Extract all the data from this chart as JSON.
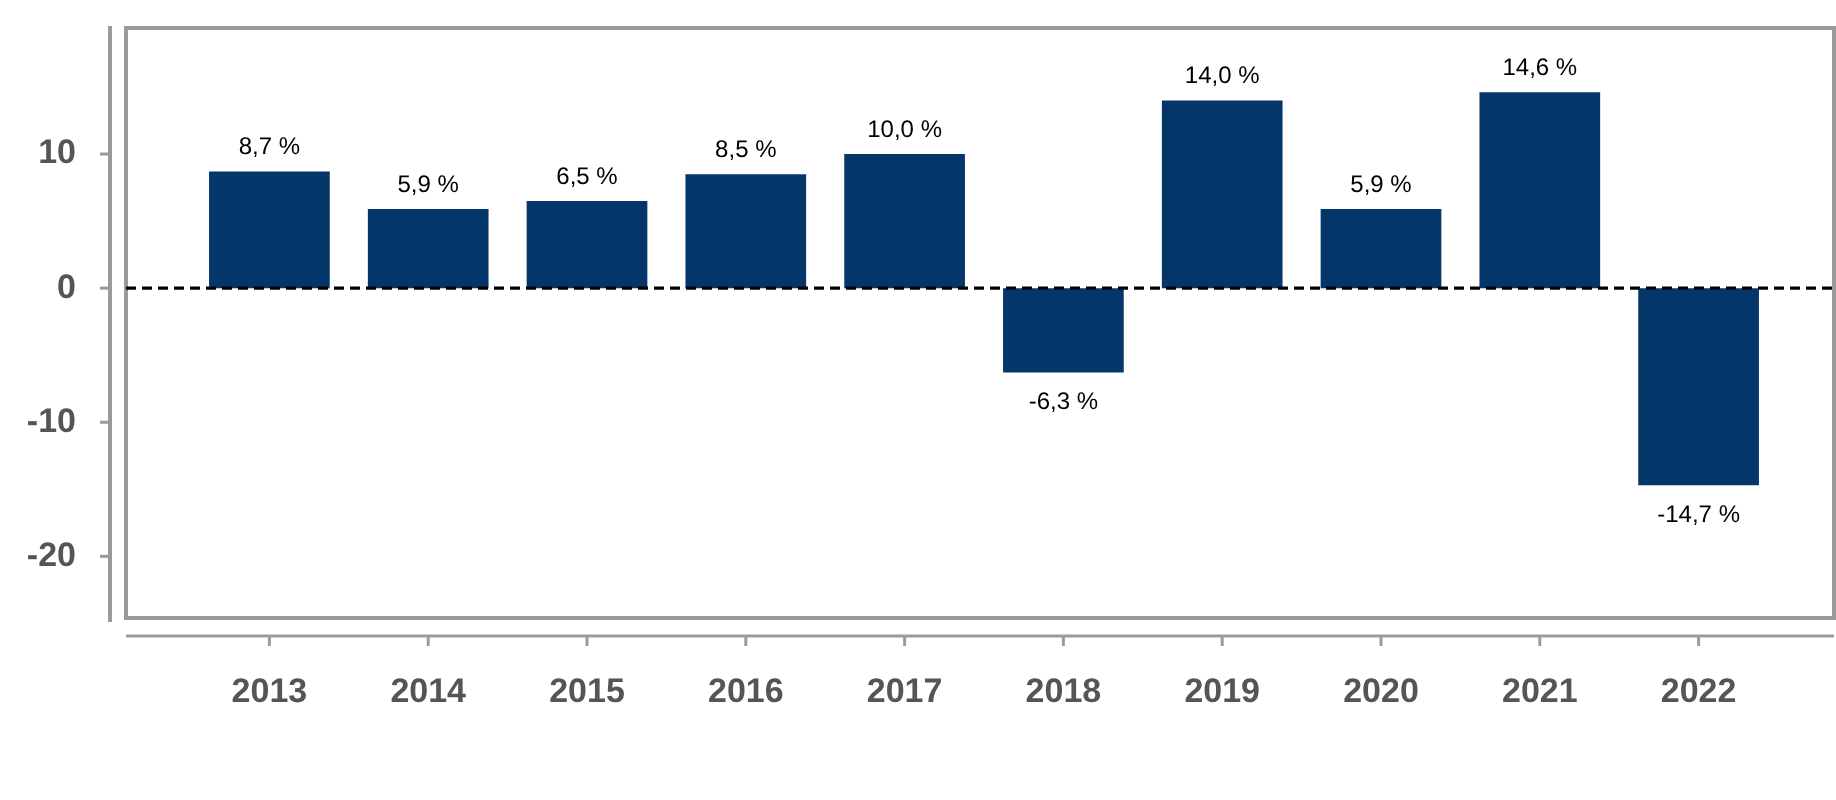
{
  "chart_data": {
    "type": "bar",
    "categories": [
      "2013",
      "2014",
      "2015",
      "2016",
      "2017",
      "2018",
      "2019",
      "2020",
      "2021",
      "2022"
    ],
    "values": [
      8.7,
      5.9,
      6.5,
      8.5,
      10.0,
      -6.3,
      14.0,
      5.9,
      14.6,
      -14.7
    ],
    "color": "#04366a",
    "value_labels": [
      "8,7 %",
      "5,9 %",
      "6,5 %",
      "8,5 %",
      "10,0 %",
      "-6,3 %",
      "14,0 %",
      "5,9 %",
      "14,6 %",
      "-14,7 %"
    ],
    "ylim": [
      -24.6,
      19.4
    ],
    "yticks": [
      -20,
      -10,
      0,
      10
    ],
    "ref_lines": [
      {
        "axis": "y",
        "value": 0,
        "color": "#000000",
        "line_style": "dashed"
      }
    ]
  }
}
